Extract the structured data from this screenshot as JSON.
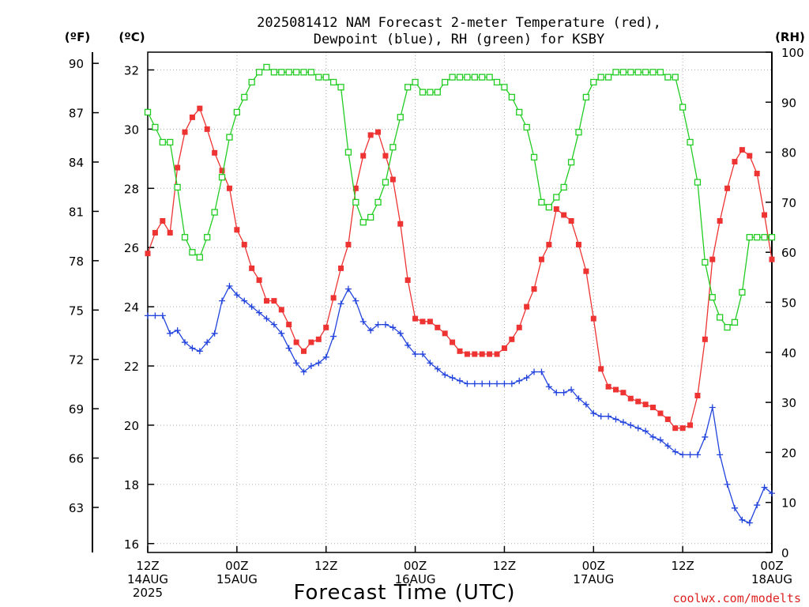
{
  "chart_data": {
    "type": "line",
    "title_lines": [
      "2025081412 NAM Forecast 2-meter Temperature (red),",
      "Dewpoint (blue), RH (green) for KSBY"
    ],
    "axis_units": {
      "fahrenheit": "(ºF)",
      "celsius": "(ºC)",
      "rh": "(RH)"
    },
    "xlabel": "Forecast Time (UTC)",
    "credit": "coolwx.com/modelts",
    "x_range_hours": [
      0,
      84
    ],
    "x_ticks": [
      {
        "hour": 0,
        "lines": [
          "12Z",
          "14AUG",
          "2025"
        ]
      },
      {
        "hour": 12,
        "lines": [
          "00Z",
          "15AUG"
        ]
      },
      {
        "hour": 24,
        "lines": [
          "12Z"
        ]
      },
      {
        "hour": 36,
        "lines": [
          "00Z",
          "16AUG"
        ]
      },
      {
        "hour": 48,
        "lines": [
          "12Z"
        ]
      },
      {
        "hour": 60,
        "lines": [
          "00Z",
          "17AUG"
        ]
      },
      {
        "hour": 72,
        "lines": [
          "12Z"
        ]
      },
      {
        "hour": 84,
        "lines": [
          "00Z",
          "18AUG"
        ]
      }
    ],
    "celsius_axis": {
      "range": [
        15.7,
        32.6
      ],
      "ticks": [
        16,
        18,
        20,
        22,
        24,
        26,
        28,
        30,
        32
      ]
    },
    "fahrenheit_ticks": [
      63,
      66,
      69,
      72,
      75,
      78,
      81,
      84,
      87,
      90
    ],
    "rh_axis": {
      "range": [
        0,
        100
      ],
      "ticks": [
        0,
        10,
        20,
        30,
        40,
        50,
        60,
        70,
        80,
        90,
        100
      ]
    },
    "series": [
      {
        "name": "Temperature",
        "axis": "celsius",
        "color": "#ee3333",
        "marker": "filled-square",
        "x": [
          0,
          1,
          2,
          3,
          4,
          5,
          6,
          7,
          8,
          9,
          10,
          11,
          12,
          13,
          14,
          15,
          16,
          17,
          18,
          19,
          20,
          21,
          22,
          23,
          24,
          25,
          26,
          27,
          28,
          29,
          30,
          31,
          32,
          33,
          34,
          35,
          36,
          37,
          38,
          39,
          40,
          41,
          42,
          43,
          44,
          45,
          46,
          47,
          48,
          49,
          50,
          51,
          52,
          53,
          54,
          55,
          56,
          57,
          58,
          59,
          60,
          61,
          62,
          63,
          64,
          65,
          66,
          67,
          68,
          69,
          70,
          71,
          72,
          73,
          74,
          75,
          76,
          77,
          78,
          79,
          80,
          81,
          82,
          83,
          84
        ],
        "y": [
          25.8,
          26.5,
          26.9,
          26.5,
          28.7,
          29.9,
          30.4,
          30.7,
          30.0,
          29.2,
          28.6,
          28.0,
          26.6,
          26.1,
          25.3,
          24.9,
          24.2,
          24.2,
          23.9,
          23.4,
          22.8,
          22.5,
          22.8,
          22.9,
          23.3,
          24.3,
          25.3,
          26.1,
          28.0,
          29.1,
          29.8,
          29.9,
          29.1,
          28.3,
          26.8,
          24.9,
          23.6,
          23.5,
          23.5,
          23.3,
          23.1,
          22.8,
          22.5,
          22.4,
          22.4,
          22.4,
          22.4,
          22.4,
          22.6,
          22.9,
          23.3,
          24.0,
          24.6,
          25.6,
          26.1,
          27.3,
          27.1,
          26.9,
          26.1,
          25.2,
          23.6,
          21.9,
          21.3,
          21.2,
          21.1,
          20.9,
          20.8,
          20.7,
          20.6,
          20.4,
          20.2,
          19.9,
          19.9,
          20.0,
          21.0,
          22.9,
          25.6,
          26.9,
          28.0,
          28.9,
          29.3,
          29.1,
          28.5,
          27.1,
          25.6
        ]
      },
      {
        "name": "Dewpoint",
        "axis": "celsius",
        "color": "#2244dd",
        "marker": "plus",
        "x": [
          0,
          1,
          2,
          3,
          4,
          5,
          6,
          7,
          8,
          9,
          10,
          11,
          12,
          13,
          14,
          15,
          16,
          17,
          18,
          19,
          20,
          21,
          22,
          23,
          24,
          25,
          26,
          27,
          28,
          29,
          30,
          31,
          32,
          33,
          34,
          35,
          36,
          37,
          38,
          39,
          40,
          41,
          42,
          43,
          44,
          45,
          46,
          47,
          48,
          49,
          50,
          51,
          52,
          53,
          54,
          55,
          56,
          57,
          58,
          59,
          60,
          61,
          62,
          63,
          64,
          65,
          66,
          67,
          68,
          69,
          70,
          71,
          72,
          73,
          74,
          75,
          76,
          77,
          78,
          79,
          80,
          81,
          82,
          83,
          84
        ],
        "y": [
          23.7,
          23.7,
          23.7,
          23.1,
          23.2,
          22.8,
          22.6,
          22.5,
          22.8,
          23.1,
          24.2,
          24.7,
          24.4,
          24.2,
          24.0,
          23.8,
          23.6,
          23.4,
          23.1,
          22.6,
          22.1,
          21.8,
          22.0,
          22.1,
          22.3,
          23.0,
          24.1,
          24.6,
          24.2,
          23.5,
          23.2,
          23.4,
          23.4,
          23.3,
          23.1,
          22.7,
          22.4,
          22.4,
          22.1,
          21.9,
          21.7,
          21.6,
          21.5,
          21.4,
          21.4,
          21.4,
          21.4,
          21.4,
          21.4,
          21.4,
          21.5,
          21.6,
          21.8,
          21.8,
          21.3,
          21.1,
          21.1,
          21.2,
          20.9,
          20.7,
          20.4,
          20.3,
          20.3,
          20.2,
          20.1,
          20.0,
          19.9,
          19.8,
          19.6,
          19.5,
          19.3,
          19.1,
          19.0,
          19.0,
          19.0,
          19.6,
          20.6,
          19.0,
          18.0,
          17.2,
          16.8,
          16.7,
          17.3,
          17.9,
          17.7
        ]
      },
      {
        "name": "RH",
        "axis": "rh",
        "color": "#22cc22",
        "marker": "open-square",
        "x": [
          0,
          1,
          2,
          3,
          4,
          5,
          6,
          7,
          8,
          9,
          10,
          11,
          12,
          13,
          14,
          15,
          16,
          17,
          18,
          19,
          20,
          21,
          22,
          23,
          24,
          25,
          26,
          27,
          28,
          29,
          30,
          31,
          32,
          33,
          34,
          35,
          36,
          37,
          38,
          39,
          40,
          41,
          42,
          43,
          44,
          45,
          46,
          47,
          48,
          49,
          50,
          51,
          52,
          53,
          54,
          55,
          56,
          57,
          58,
          59,
          60,
          61,
          62,
          63,
          64,
          65,
          66,
          67,
          68,
          69,
          70,
          71,
          72,
          73,
          74,
          75,
          76,
          77,
          78,
          79,
          80,
          81,
          82,
          83,
          84
        ],
        "y": [
          88,
          85,
          82,
          82,
          73,
          63,
          60,
          59,
          63,
          68,
          75,
          83,
          88,
          91,
          94,
          96,
          97,
          96,
          96,
          96,
          96,
          96,
          96,
          95,
          95,
          94,
          93,
          80,
          70,
          66,
          67,
          70,
          74,
          81,
          87,
          93,
          94,
          92,
          92,
          92,
          94,
          95,
          95,
          95,
          95,
          95,
          95,
          94,
          93,
          91,
          88,
          85,
          79,
          70,
          69,
          71,
          73,
          78,
          84,
          91,
          94,
          95,
          95,
          96,
          96,
          96,
          96,
          96,
          96,
          96,
          95,
          95,
          89,
          82,
          74,
          58,
          51,
          47,
          45,
          46,
          52,
          63,
          63,
          63,
          63
        ]
      }
    ]
  }
}
